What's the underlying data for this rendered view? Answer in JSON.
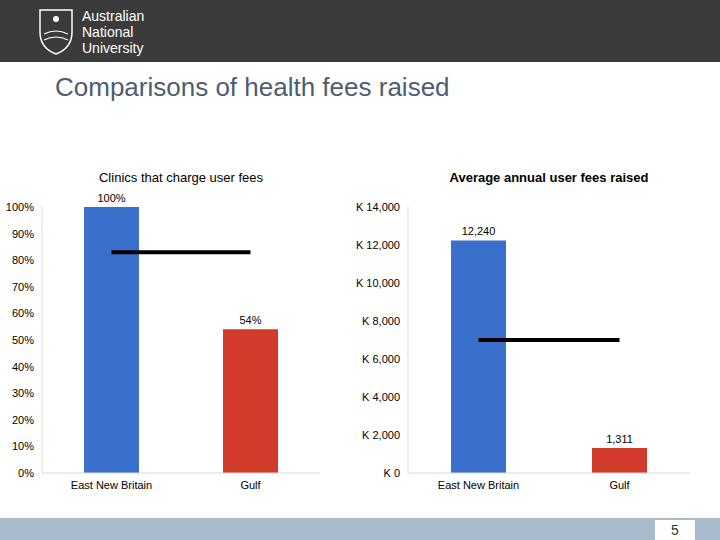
{
  "header": {
    "logo_text": [
      "Australian",
      "National",
      "University"
    ]
  },
  "title": "Comparisons of health fees raised",
  "page_number": 5,
  "chart_data": [
    {
      "type": "bar",
      "title": "Clinics that charge user fees",
      "categories": [
        "East New Britain",
        "Gulf"
      ],
      "values": [
        100,
        54
      ],
      "value_labels": [
        "100%",
        "54%"
      ],
      "colors": [
        "#3a6fcc",
        "#d13b2b"
      ],
      "ylim": [
        0,
        100
      ],
      "yticks": [
        {
          "value": 0,
          "label": "0%"
        },
        {
          "value": 10,
          "label": "10%"
        },
        {
          "value": 20,
          "label": "20%"
        },
        {
          "value": 30,
          "label": "30%"
        },
        {
          "value": 40,
          "label": "40%"
        },
        {
          "value": 50,
          "label": "50%"
        },
        {
          "value": 60,
          "label": "60%"
        },
        {
          "value": 70,
          "label": "70%"
        },
        {
          "value": 80,
          "label": "80%"
        },
        {
          "value": 90,
          "label": "90%"
        },
        {
          "value": 100,
          "label": "100%"
        }
      ],
      "reference_line": 83,
      "data_labels": true,
      "grid": false
    },
    {
      "type": "bar",
      "title": "Average annual user fees raised",
      "categories": [
        "East New Britain",
        "Gulf"
      ],
      "values": [
        12240,
        1311
      ],
      "value_labels": [
        "12,240",
        "1,311"
      ],
      "colors": [
        "#3a6fcc",
        "#d13b2b"
      ],
      "ylim": [
        0,
        14000
      ],
      "yticks": [
        {
          "value": 0,
          "label": "K 0"
        },
        {
          "value": 2000,
          "label": "K 2,000"
        },
        {
          "value": 4000,
          "label": "K 4,000"
        },
        {
          "value": 6000,
          "label": "K 6,000"
        },
        {
          "value": 8000,
          "label": "K 8,000"
        },
        {
          "value": 10000,
          "label": "K 10,000"
        },
        {
          "value": 12000,
          "label": "K 12,000"
        },
        {
          "value": 14000,
          "label": "K 14,000"
        }
      ],
      "reference_line": 7000,
      "data_labels": true,
      "grid": false
    }
  ]
}
